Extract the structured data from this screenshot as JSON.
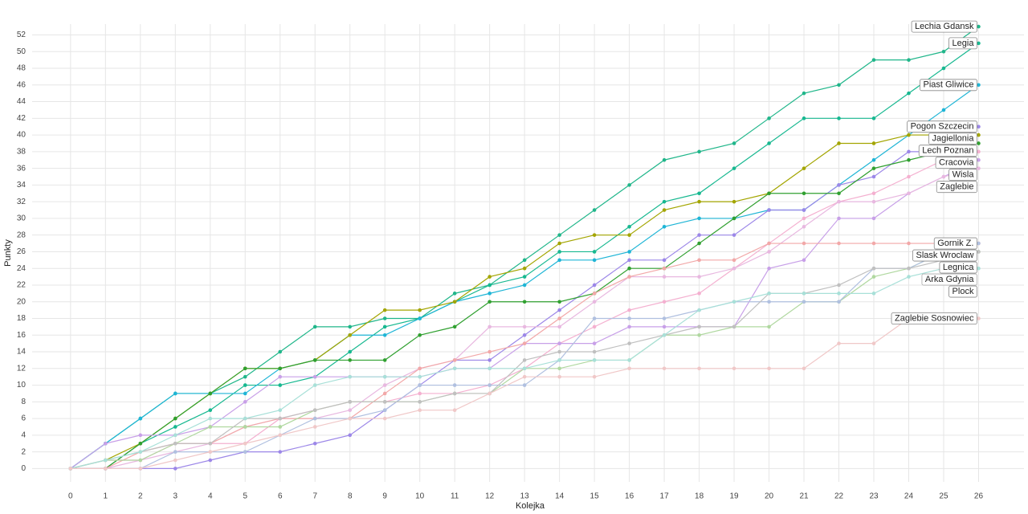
{
  "chart_data": {
    "type": "line",
    "x_label": "Kolejka",
    "y_label": "Punkty",
    "x": [
      0,
      1,
      2,
      3,
      4,
      5,
      6,
      7,
      8,
      9,
      10,
      11,
      12,
      13,
      14,
      15,
      16,
      17,
      18,
      19,
      20,
      21,
      22,
      23,
      24,
      25,
      26
    ],
    "xlim": [
      -1.1,
      27.3
    ],
    "xticks": [
      0,
      1,
      2,
      3,
      4,
      5,
      6,
      7,
      8,
      9,
      10,
      11,
      12,
      13,
      14,
      15,
      16,
      17,
      18,
      19,
      20,
      21,
      22,
      23,
      24,
      25,
      26
    ],
    "ylim": [
      -1.6,
      53.3
    ],
    "yticks": [
      0,
      2,
      4,
      6,
      8,
      10,
      12,
      14,
      16,
      18,
      20,
      22,
      24,
      26,
      28,
      30,
      32,
      34,
      36,
      38,
      40,
      42,
      44,
      46,
      48,
      50,
      52
    ],
    "grid": true,
    "series": [
      {
        "name": "Lechia Gdansk",
        "color": "#20b68a",
        "values": [
          0,
          3,
          6,
          9,
          9,
          11,
          14,
          17,
          17,
          18,
          18,
          21,
          22,
          25,
          28,
          31,
          34,
          37,
          38,
          39,
          42,
          45,
          46,
          49,
          49,
          50,
          53
        ]
      },
      {
        "name": "Legia",
        "color": "#17b890",
        "values": [
          0,
          0,
          3,
          5,
          7,
          10,
          10,
          11,
          14,
          17,
          18,
          20,
          22,
          23,
          26,
          26,
          29,
          32,
          33,
          36,
          39,
          42,
          42,
          42,
          45,
          48,
          51
        ]
      },
      {
        "name": "Piast Gliwice",
        "color": "#1fb5d6",
        "values": [
          0,
          3,
          6,
          9,
          9,
          9,
          12,
          13,
          16,
          16,
          18,
          20,
          21,
          22,
          25,
          25,
          26,
          29,
          30,
          30,
          31,
          31,
          34,
          37,
          40,
          43,
          46
        ]
      },
      {
        "name": "Pogon Szczecin",
        "color": "#9c87e8",
        "values": [
          0,
          0,
          0,
          0,
          1,
          2,
          2,
          3,
          4,
          7,
          10,
          13,
          13,
          16,
          19,
          22,
          25,
          25,
          28,
          28,
          31,
          31,
          34,
          35,
          38,
          38,
          41
        ]
      },
      {
        "name": "Jagiellonia",
        "color": "#a3a500",
        "values": [
          0,
          1,
          3,
          6,
          9,
          12,
          12,
          13,
          16,
          19,
          19,
          20,
          23,
          24,
          27,
          28,
          28,
          31,
          32,
          32,
          33,
          36,
          39,
          39,
          40,
          40,
          40
        ]
      },
      {
        "name": "Lech Poznan",
        "color": "#30a030",
        "values": [
          0,
          0,
          3,
          6,
          9,
          12,
          12,
          13,
          13,
          13,
          16,
          17,
          20,
          20,
          20,
          21,
          24,
          24,
          27,
          30,
          33,
          33,
          33,
          36,
          37,
          38,
          39
        ]
      },
      {
        "name": "Cracovia",
        "color": "#f4b0d0",
        "values": [
          0,
          1,
          1,
          3,
          3,
          3,
          6,
          7,
          8,
          8,
          9,
          9,
          10,
          12,
          15,
          17,
          19,
          20,
          21,
          24,
          27,
          30,
          32,
          33,
          35,
          37,
          38
        ]
      },
      {
        "name": "Wisla",
        "color": "#c8a0e8",
        "values": [
          0,
          3,
          4,
          4,
          5,
          8,
          11,
          11,
          11,
          11,
          11,
          12,
          12,
          15,
          15,
          15,
          17,
          17,
          17,
          17,
          24,
          25,
          30,
          30,
          33,
          35,
          37
        ]
      },
      {
        "name": "Zaglebie",
        "color": "#e8b8e0",
        "values": [
          0,
          0,
          1,
          2,
          3,
          5,
          6,
          6,
          7,
          10,
          12,
          13,
          17,
          17,
          17,
          20,
          23,
          23,
          23,
          24,
          26,
          29,
          32,
          32,
          33,
          35,
          36
        ]
      },
      {
        "name": "Gornik Z.",
        "color": "#f2a8a8",
        "values": [
          0,
          0,
          2,
          3,
          3,
          5,
          6,
          6,
          6,
          9,
          12,
          13,
          14,
          15,
          18,
          21,
          23,
          24,
          25,
          25,
          27,
          27,
          27,
          27,
          27,
          27,
          27
        ]
      },
      {
        "name": "Legnica",
        "color": "#b0d8a0",
        "values": [
          0,
          1,
          1,
          3,
          5,
          5,
          5,
          7,
          8,
          8,
          8,
          9,
          9,
          12,
          12,
          13,
          13,
          16,
          16,
          17,
          17,
          20,
          20,
          23,
          24,
          26,
          26
        ]
      },
      {
        "name": "Slask Wroclaw",
        "color": "#b0c0e0",
        "values": [
          0,
          0,
          0,
          2,
          2,
          2,
          4,
          6,
          6,
          7,
          10,
          10,
          10,
          10,
          13,
          18,
          18,
          18,
          19,
          20,
          20,
          20,
          20,
          24,
          24,
          26,
          27
        ]
      },
      {
        "name": "Arka Gdynia",
        "color": "#c0c0c0",
        "values": [
          0,
          1,
          2,
          3,
          3,
          6,
          6,
          7,
          8,
          8,
          8,
          9,
          9,
          13,
          14,
          14,
          15,
          16,
          17,
          17,
          21,
          21,
          22,
          24,
          24,
          25,
          26
        ]
      },
      {
        "name": "Plock",
        "color": "#a8e0d8",
        "values": [
          0,
          1,
          2,
          4,
          6,
          6,
          7,
          10,
          11,
          11,
          11,
          12,
          12,
          12,
          13,
          13,
          13,
          16,
          19,
          20,
          21,
          21,
          21,
          21,
          23,
          24,
          24
        ]
      },
      {
        "name": "Zaglebie Sosnowiec",
        "color": "#f0c8c8",
        "values": [
          0,
          0,
          0,
          1,
          2,
          3,
          4,
          5,
          6,
          6,
          7,
          7,
          9,
          11,
          11,
          11,
          12,
          12,
          12,
          12,
          12,
          12,
          15,
          15,
          18,
          18,
          18
        ]
      }
    ]
  }
}
